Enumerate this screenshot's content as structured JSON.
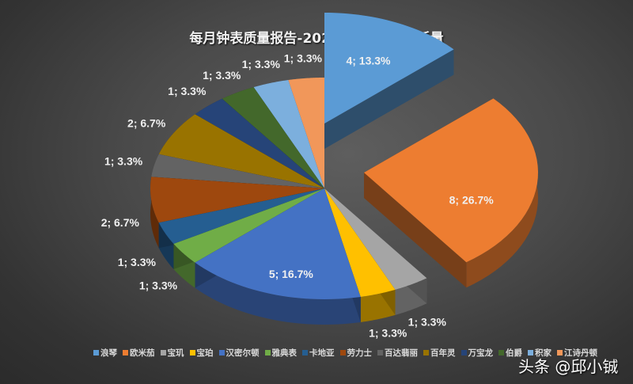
{
  "chart_data": {
    "type": "pie",
    "title": "每月钟表质量报告-2022年7月品牌投诉量",
    "style": "3d-exploded",
    "categories": [
      "浪琴",
      "欧米茄",
      "宝玑",
      "宝珀",
      "汉密尔顿",
      "雅典表",
      "卡地亚",
      "劳力士",
      "百达翡丽",
      "百年灵",
      "万宝龙",
      "伯爵",
      "积家",
      "江诗丹顿"
    ],
    "values": [
      4,
      8,
      1,
      1,
      5,
      1,
      1,
      2,
      1,
      2,
      1,
      1,
      1,
      1
    ],
    "percent_labels": [
      "4; 13.3%",
      "8; 26.7%",
      "1; 3.3%",
      "1; 3.3%",
      "5; 16.7%",
      "1; 3.3%",
      "1; 3.3%",
      "2; 6.7%",
      "1; 3.3%",
      "2; 6.7%",
      "1; 3.3%",
      "1; 3.3%",
      "1; 3.3%",
      "1; 3.3%"
    ],
    "colors": [
      "#5b9bd5",
      "#ed7d31",
      "#a5a5a5",
      "#ffc000",
      "#4472c4",
      "#70ad47",
      "#255e91",
      "#9e480e",
      "#636363",
      "#997300",
      "#264478",
      "#43682b",
      "#7cafdd",
      "#f1975a"
    ],
    "legend_position": "bottom",
    "total": 30
  },
  "title": "每月钟表质量报告-2022年7月品牌投诉量",
  "legend": [
    {
      "label": "浪琴",
      "color": "#5b9bd5"
    },
    {
      "label": "欧米茄",
      "color": "#ed7d31"
    },
    {
      "label": "宝玑",
      "color": "#a5a5a5"
    },
    {
      "label": "宝珀",
      "color": "#ffc000"
    },
    {
      "label": "汉密尔顿",
      "color": "#4472c4"
    },
    {
      "label": "雅典表",
      "color": "#70ad47"
    },
    {
      "label": "卡地亚",
      "color": "#255e91"
    },
    {
      "label": "劳力士",
      "color": "#9e480e"
    },
    {
      "label": "百达翡丽",
      "color": "#636363"
    },
    {
      "label": "百年灵",
      "color": "#997300"
    },
    {
      "label": "万宝龙",
      "color": "#264478"
    },
    {
      "label": "伯爵",
      "color": "#43682b"
    },
    {
      "label": "积家",
      "color": "#7cafdd"
    },
    {
      "label": "江诗丹顿",
      "color": "#f1975a"
    }
  ],
  "watermark": "头条 @邱小铖"
}
